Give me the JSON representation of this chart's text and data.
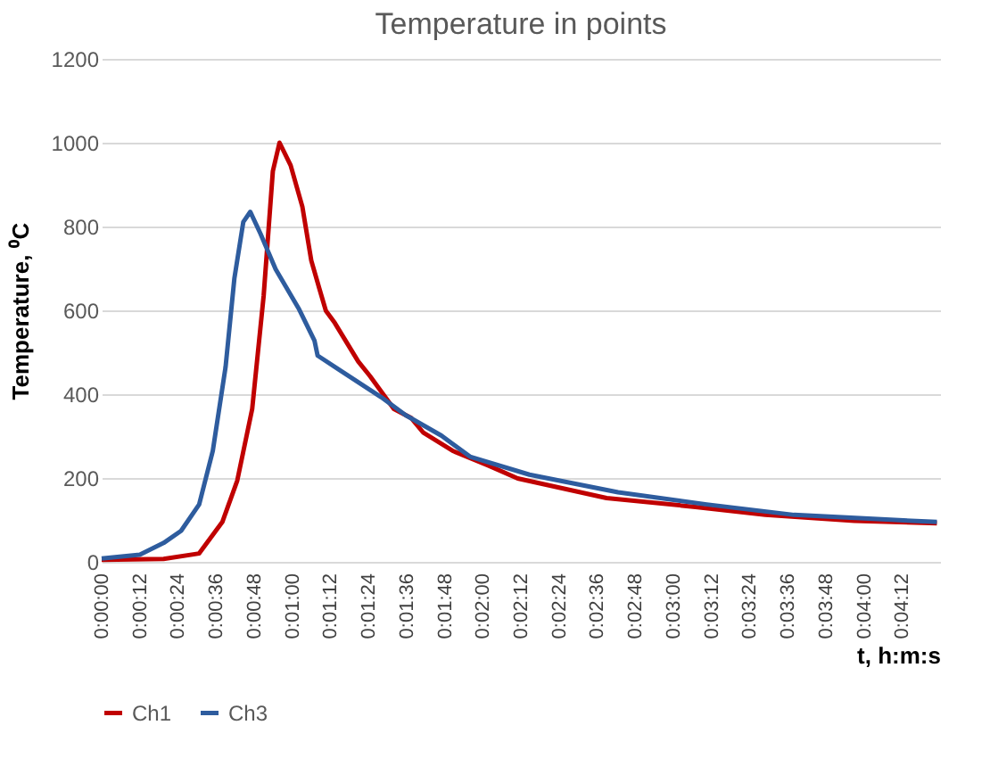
{
  "chart_data": {
    "type": "line",
    "title": "Temperature in points",
    "xlabel": "t, h:m:s",
    "ylabel": "Temperature, ⁰C",
    "xlim": [
      0,
      264
    ],
    "ylim": [
      0,
      1200
    ],
    "yticks": [
      0,
      200,
      400,
      600,
      800,
      1000,
      1200
    ],
    "xticks": [
      {
        "value": 0,
        "label": "0:00:00"
      },
      {
        "value": 12,
        "label": "0:00:12"
      },
      {
        "value": 24,
        "label": "0:00:24"
      },
      {
        "value": 36,
        "label": "0:00:36"
      },
      {
        "value": 48,
        "label": "0:00:48"
      },
      {
        "value": 60,
        "label": "0:01:00"
      },
      {
        "value": 72,
        "label": "0:01:12"
      },
      {
        "value": 84,
        "label": "0:01:24"
      },
      {
        "value": 96,
        "label": "0:01:36"
      },
      {
        "value": 108,
        "label": "0:01:48"
      },
      {
        "value": 120,
        "label": "0:02:00"
      },
      {
        "value": 132,
        "label": "0:02:12"
      },
      {
        "value": 144,
        "label": "0:02:24"
      },
      {
        "value": 156,
        "label": "0:02:36"
      },
      {
        "value": 168,
        "label": "0:02:48"
      },
      {
        "value": 180,
        "label": "0:03:00"
      },
      {
        "value": 192,
        "label": "0:03:12"
      },
      {
        "value": 204,
        "label": "0:03:24"
      },
      {
        "value": 216,
        "label": "0:03:36"
      },
      {
        "value": 228,
        "label": "0:03:48"
      },
      {
        "value": 240,
        "label": "0:04:00"
      },
      {
        "value": 252,
        "label": "0:04:12"
      }
    ],
    "grid": "y",
    "legend": "bottom",
    "line_style": "solid",
    "marker": "none",
    "series": [
      {
        "name": "Ch1",
        "color": "#c00000",
        "x": [
          0,
          19.5,
          30.7,
          38,
          42.7,
          47.4,
          51,
          53.9,
          56,
          59.5,
          63.2,
          66,
          68.7,
          70.6,
          73.4,
          80.8,
          84.5,
          92,
          97.5,
          101.3,
          110.5,
          121.7,
          131,
          159,
          187,
          209,
          237,
          263
        ],
        "values": [
          5,
          7,
          20,
          95,
          194,
          365,
          634,
          932,
          1000,
          946,
          847,
          719,
          648,
          599,
          570,
          478,
          443,
          365,
          343,
          308,
          265,
          230,
          199,
          152,
          131,
          112,
          98,
          92
        ]
      },
      {
        "name": "Ch3",
        "color": "#2e5c9e",
        "x": [
          0,
          12,
          19.5,
          25,
          30.7,
          35,
          39,
          41.8,
          44.6,
          46.8,
          50,
          54.8,
          62,
          67,
          68,
          75,
          88,
          95.7,
          107,
          116,
          134.7,
          162.6,
          190.5,
          218,
          263
        ],
        "values": [
          8,
          17,
          45,
          74,
          137,
          265,
          464,
          677,
          811,
          835,
          783,
          698,
          605,
          528,
          492,
          457,
          393,
          350,
          301,
          251,
          208,
          166,
          137,
          112,
          95
        ]
      }
    ]
  }
}
